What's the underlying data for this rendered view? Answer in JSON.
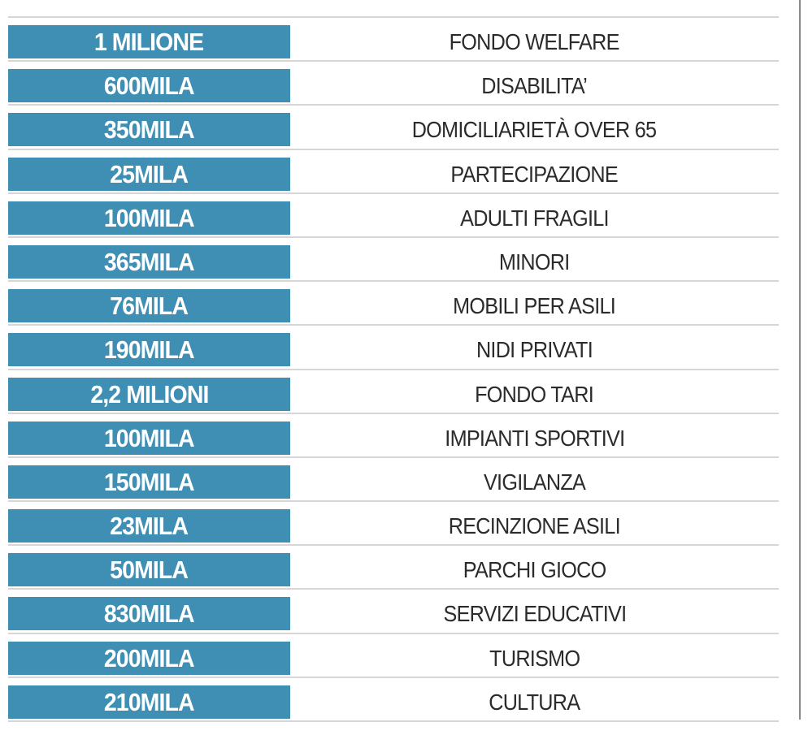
{
  "accent_color": "#3f8fb5",
  "rows": [
    {
      "amount": "1 MILIONE",
      "item": "FONDO WELFARE"
    },
    {
      "amount": "600MILA",
      "item": "DISABILITA’"
    },
    {
      "amount": "350MILA",
      "item": "DOMICILIARIETÀ OVER 65"
    },
    {
      "amount": "25MILA",
      "item": "PARTECIPAZIONE"
    },
    {
      "amount": "100MILA",
      "item": "ADULTI FRAGILI"
    },
    {
      "amount": "365MILA",
      "item": "MINORI"
    },
    {
      "amount": "76MILA",
      "item": "MOBILI PER ASILI"
    },
    {
      "amount": "190MILA",
      "item": "NIDI PRIVATI"
    },
    {
      "amount": "2,2 MILIONI",
      "item": "FONDO TARI"
    },
    {
      "amount": "100MILA",
      "item": "IMPIANTI SPORTIVI"
    },
    {
      "amount": "150MILA",
      "item": "VIGILANZA"
    },
    {
      "amount": "23MILA",
      "item": "RECINZIONE ASILI"
    },
    {
      "amount": "50MILA",
      "item": "PARCHI GIOCO"
    },
    {
      "amount": "830MILA",
      "item": "SERVIZI EDUCATIVI"
    },
    {
      "amount": "200MILA",
      "item": "TURISMO"
    },
    {
      "amount": "210MILA",
      "item": "CULTURA"
    }
  ]
}
